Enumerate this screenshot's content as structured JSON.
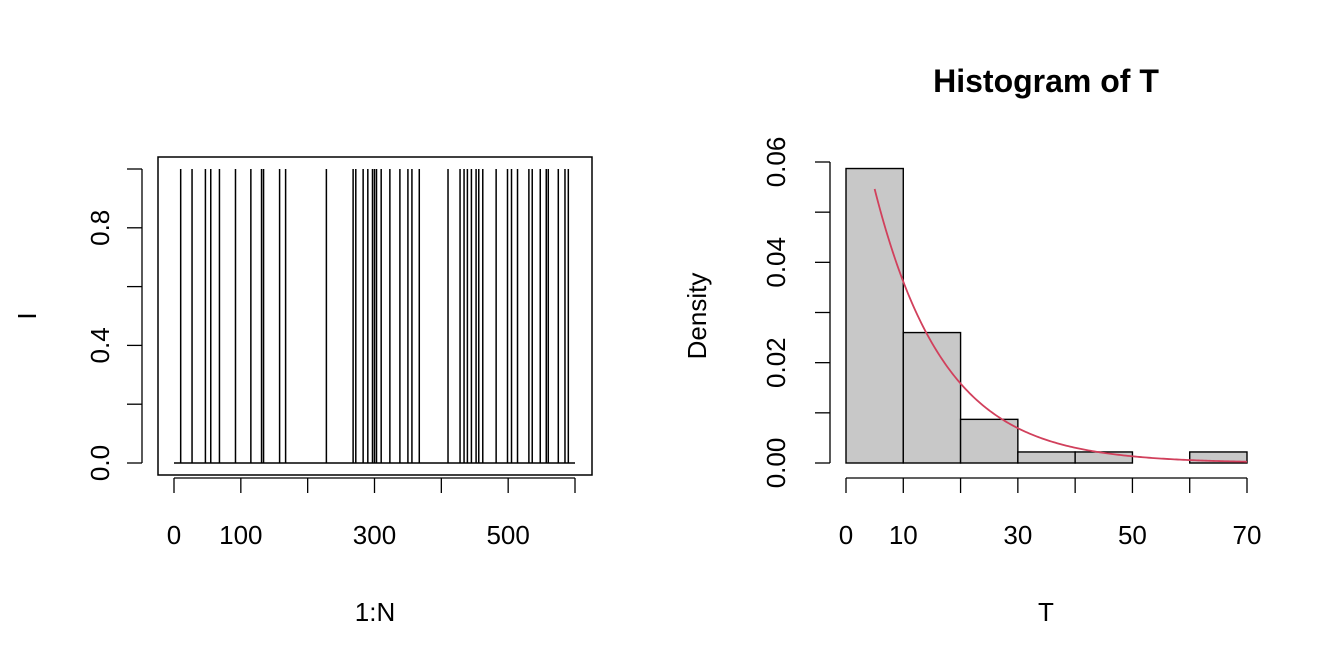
{
  "chart_data": [
    {
      "type": "needle",
      "title": "",
      "xlabel": "1:N",
      "ylabel": "I",
      "xlim": [
        0,
        600
      ],
      "ylim": [
        0,
        1
      ],
      "x_ticks": [
        0,
        100,
        200,
        300,
        400,
        500,
        600
      ],
      "x_tick_labels": [
        "0",
        "100",
        "",
        "300",
        "",
        "500",
        ""
      ],
      "y_ticks": [
        0,
        0.2,
        0.4,
        0.6,
        0.8,
        1.0
      ],
      "y_tick_labels": [
        "0.0",
        "",
        "0.4",
        "",
        "0.8",
        ""
      ],
      "baseline": 0,
      "events": [
        10,
        27,
        47,
        55,
        68,
        92,
        115,
        131,
        134,
        158,
        167,
        228,
        268,
        272,
        283,
        290,
        297,
        300,
        303,
        310,
        323,
        338,
        350,
        356,
        367,
        410,
        428,
        434,
        439,
        445,
        452,
        456,
        462,
        482,
        499,
        505,
        514,
        531,
        536,
        548,
        557,
        560,
        575,
        585,
        590
      ]
    },
    {
      "type": "histogram",
      "title": "Histogram of T",
      "xlabel": "T",
      "ylabel": "Density",
      "xlim": [
        0,
        70
      ],
      "ylim": [
        0,
        0.06
      ],
      "x_ticks": [
        0,
        10,
        20,
        30,
        40,
        50,
        60,
        70
      ],
      "x_tick_labels": [
        "0",
        "10",
        "",
        "30",
        "",
        "50",
        "",
        "70"
      ],
      "y_ticks": [
        0,
        0.01,
        0.02,
        0.03,
        0.04,
        0.05,
        0.06
      ],
      "y_tick_labels": [
        "0.00",
        "",
        "0.02",
        "",
        "0.04",
        "",
        "0.06"
      ],
      "bins": [
        {
          "start": 0,
          "end": 10,
          "density": 0.0587
        },
        {
          "start": 10,
          "end": 20,
          "density": 0.026
        },
        {
          "start": 20,
          "end": 30,
          "density": 0.0087
        },
        {
          "start": 30,
          "end": 40,
          "density": 0.0022
        },
        {
          "start": 40,
          "end": 50,
          "density": 0.0022
        },
        {
          "start": 50,
          "end": 60,
          "density": 0
        },
        {
          "start": 60,
          "end": 70,
          "density": 0.0022
        }
      ],
      "overlay": {
        "type": "exponential-density",
        "rate": 0.0825,
        "x_from": 5,
        "x_to": 70,
        "color": "#d1405c"
      }
    }
  ]
}
